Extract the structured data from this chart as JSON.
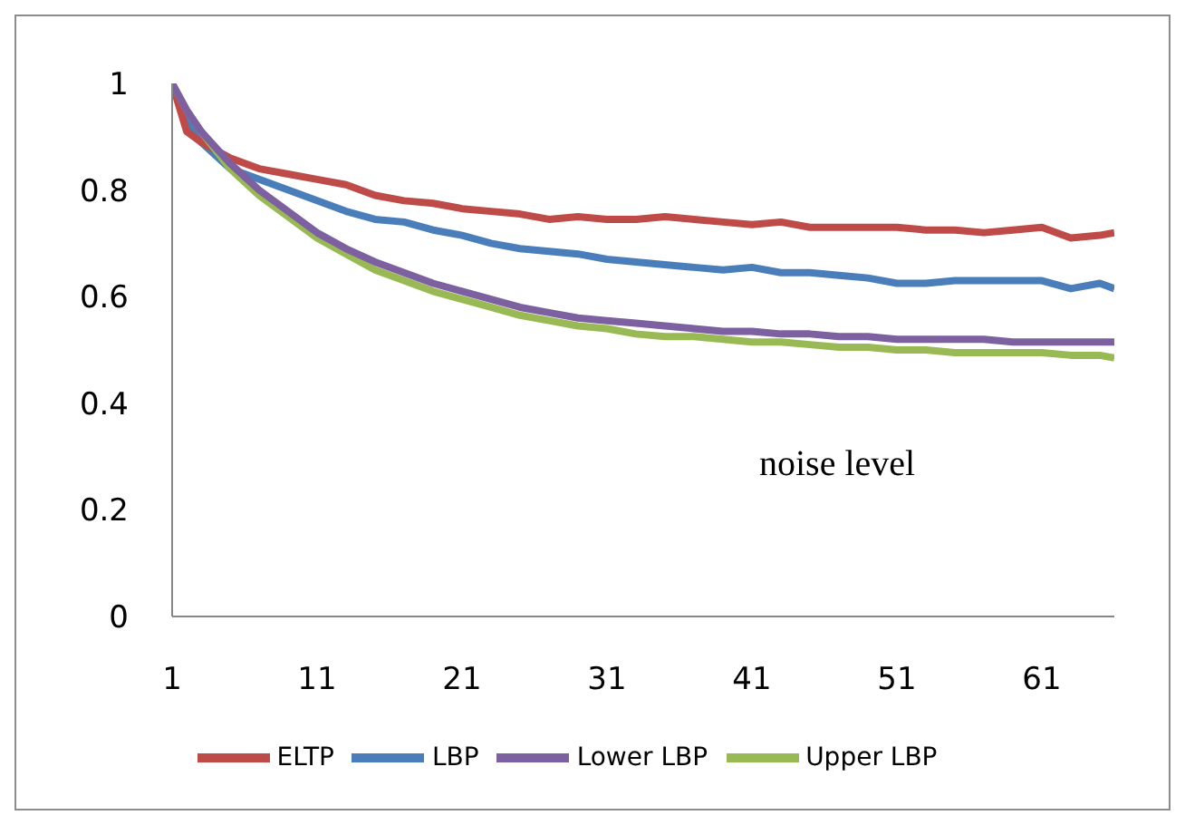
{
  "chart_data": {
    "type": "line",
    "x": [
      1,
      2,
      3,
      5,
      7,
      9,
      11,
      13,
      15,
      17,
      19,
      21,
      23,
      25,
      27,
      29,
      31,
      33,
      35,
      37,
      39,
      41,
      43,
      45,
      47,
      49,
      51,
      53,
      55,
      57,
      59,
      61,
      63,
      65,
      66
    ],
    "series": [
      {
        "name": "LBP",
        "color": "#4a7ebb",
        "values": [
          1.0,
          0.93,
          0.89,
          0.84,
          0.82,
          0.8,
          0.78,
          0.76,
          0.745,
          0.74,
          0.725,
          0.715,
          0.7,
          0.69,
          0.685,
          0.68,
          0.67,
          0.665,
          0.66,
          0.655,
          0.65,
          0.655,
          0.645,
          0.645,
          0.64,
          0.635,
          0.625,
          0.625,
          0.63,
          0.63,
          0.63,
          0.63,
          0.615,
          0.625,
          0.615
        ]
      },
      {
        "name": "ELTP",
        "color": "#be4b48",
        "values": [
          1.0,
          0.91,
          0.89,
          0.86,
          0.84,
          0.83,
          0.82,
          0.81,
          0.79,
          0.78,
          0.775,
          0.765,
          0.76,
          0.755,
          0.745,
          0.75,
          0.745,
          0.745,
          0.75,
          0.745,
          0.74,
          0.735,
          0.74,
          0.73,
          0.73,
          0.73,
          0.73,
          0.725,
          0.725,
          0.72,
          0.725,
          0.73,
          0.71,
          0.715,
          0.72
        ]
      },
      {
        "name": "Upper LBP",
        "color": "#98b954",
        "values": [
          1.0,
          0.95,
          0.91,
          0.84,
          0.79,
          0.75,
          0.71,
          0.68,
          0.65,
          0.63,
          0.61,
          0.595,
          0.58,
          0.565,
          0.555,
          0.545,
          0.54,
          0.53,
          0.525,
          0.525,
          0.52,
          0.515,
          0.515,
          0.51,
          0.505,
          0.505,
          0.5,
          0.5,
          0.495,
          0.495,
          0.495,
          0.495,
          0.49,
          0.49,
          0.485
        ]
      },
      {
        "name": "Lower LBP",
        "color": "#7d60a0",
        "values": [
          1.0,
          0.95,
          0.91,
          0.85,
          0.8,
          0.76,
          0.72,
          0.69,
          0.665,
          0.645,
          0.625,
          0.61,
          0.595,
          0.58,
          0.57,
          0.56,
          0.555,
          0.55,
          0.545,
          0.54,
          0.535,
          0.535,
          0.53,
          0.53,
          0.525,
          0.525,
          0.52,
          0.52,
          0.52,
          0.52,
          0.515,
          0.515,
          0.515,
          0.515,
          0.515
        ]
      }
    ],
    "xlim": [
      1,
      66
    ],
    "xticks": [
      1,
      11,
      21,
      31,
      41,
      51,
      61
    ],
    "ylim": [
      0,
      1
    ],
    "yticks": [
      0,
      0.2,
      0.4,
      0.6,
      0.8,
      1
    ],
    "annotations": [
      "noise level"
    ],
    "grid": false,
    "legend": "bottom",
    "marker": "none",
    "line_style": "solid"
  }
}
